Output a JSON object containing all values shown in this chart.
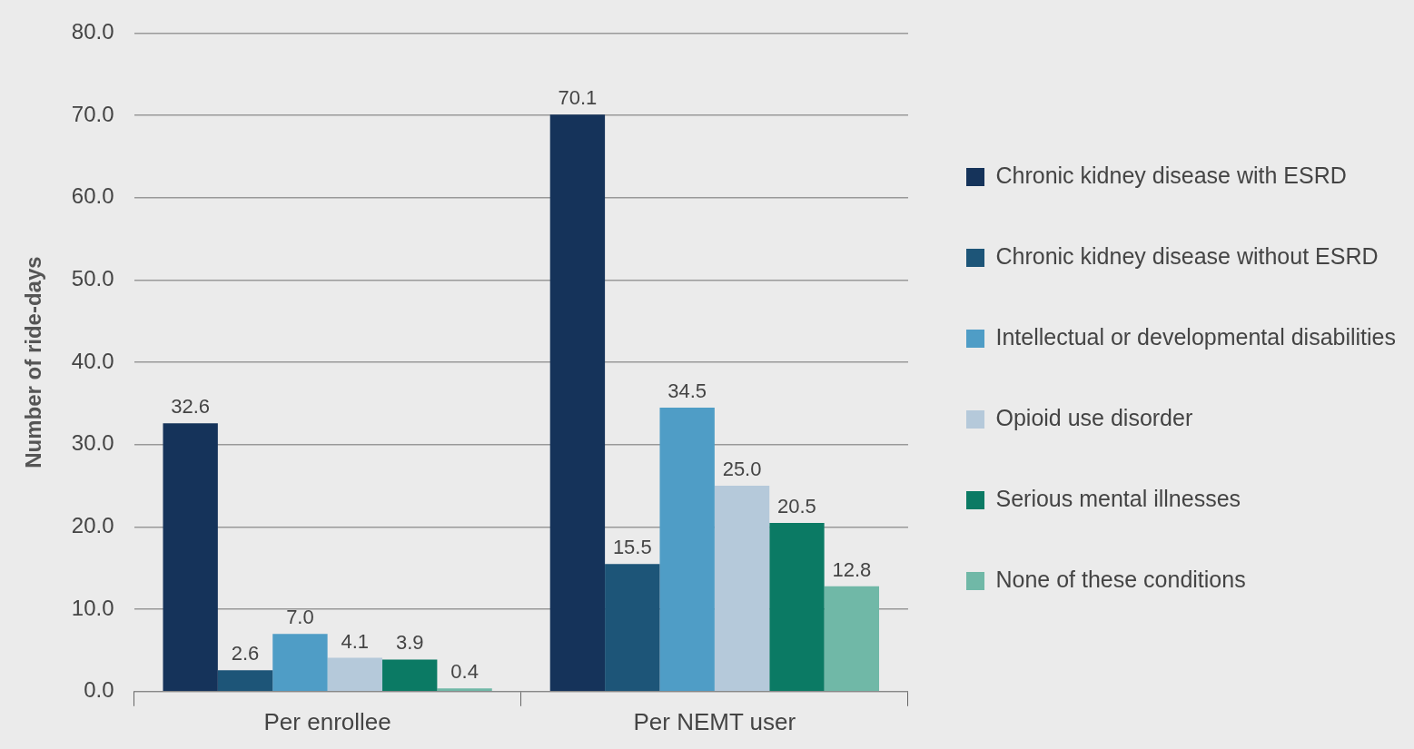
{
  "chart_data": {
    "type": "bar",
    "ylabel": "Number of ride-days",
    "categories": [
      "Per enrollee",
      "Per NEMT user"
    ],
    "series": [
      {
        "name": "Chronic kidney disease with ESRD",
        "color": "#15335a",
        "values": [
          32.6,
          70.1
        ],
        "value_labels": [
          "32.6",
          "70.1"
        ]
      },
      {
        "name": "Chronic kidney disease without ESRD",
        "color": "#1d5578",
        "values": [
          2.6,
          15.5
        ],
        "value_labels": [
          "2.6",
          "15.5"
        ]
      },
      {
        "name": "Intellectual or developmental disabilities",
        "color": "#4f9dc6",
        "values": [
          7.0,
          34.5
        ],
        "value_labels": [
          "7.0",
          "34.5"
        ]
      },
      {
        "name": "Opioid use disorder",
        "color": "#b5c9da",
        "values": [
          4.1,
          25.0
        ],
        "value_labels": [
          "4.1",
          "25.0"
        ]
      },
      {
        "name": "Serious mental illnesses",
        "color": "#0b7a64",
        "values": [
          3.9,
          20.5
        ],
        "value_labels": [
          "3.9",
          "20.5"
        ]
      },
      {
        "name": "None of these conditions",
        "color": "#70b8a7",
        "values": [
          0.4,
          12.8
        ],
        "value_labels": [
          "0.4",
          "12.8"
        ]
      }
    ],
    "ylim": [
      0,
      80
    ],
    "yticks": [
      {
        "value": 0,
        "label": "0.0"
      },
      {
        "value": 10,
        "label": "10.0"
      },
      {
        "value": 20,
        "label": "20.0"
      },
      {
        "value": 30,
        "label": "30.0"
      },
      {
        "value": 40,
        "label": "40.0"
      },
      {
        "value": 50,
        "label": "50.0"
      },
      {
        "value": 60,
        "label": "60.0"
      },
      {
        "value": 70,
        "label": "70.0"
      },
      {
        "value": 80,
        "label": "80.0"
      }
    ],
    "grid": "y",
    "legend": "right"
  }
}
